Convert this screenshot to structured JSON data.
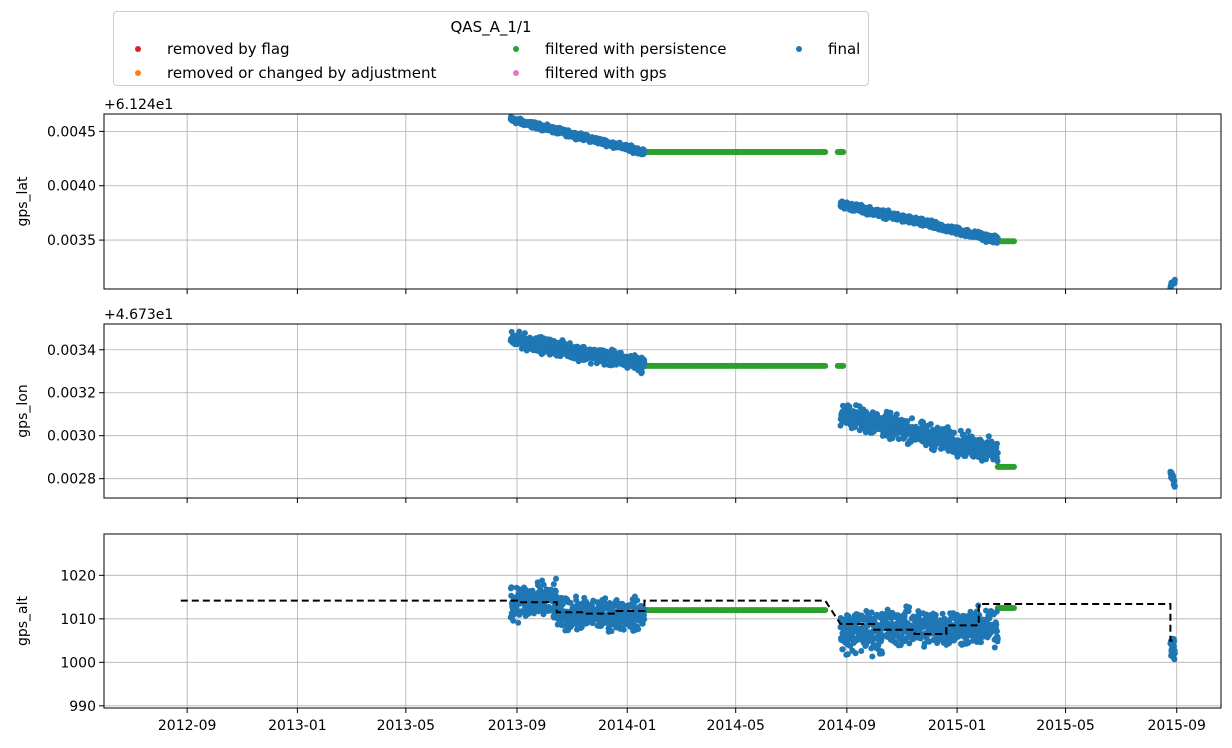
{
  "chart_data": [
    {
      "type": "scatter",
      "id": "lat",
      "ylabel": "gps_lat",
      "offset_label": "+6.124e1",
      "ylim": [
        0.00305,
        0.00466
      ],
      "yticks": [
        0.0035,
        0.004,
        0.0045
      ],
      "ytick_labels": [
        "0.0035",
        "0.0040",
        "0.0045"
      ],
      "grid": true,
      "series": [
        {
          "name": "final",
          "segments": [
            {
              "x": [
                "2013-08-25",
                "2014-01-20"
              ],
              "y": [
                0.00461,
                0.00431
              ],
              "spread": 4e-05
            },
            {
              "x": [
                "2014-08-25",
                "2015-02-15"
              ],
              "y": [
                0.00383,
                0.0035
              ],
              "spread": 5e-05
            },
            {
              "x": [
                "2015-08-25",
                "2015-08-30"
              ],
              "y": [
                0.00308,
                0.00312
              ],
              "spread": 3e-05
            }
          ]
        },
        {
          "name": "filtered with persistence",
          "segments": [
            {
              "x": [
                "2014-01-20",
                "2014-08-08"
              ],
              "y": [
                0.00431,
                0.00431
              ],
              "spread": 0
            },
            {
              "x": [
                "2014-08-22",
                "2014-08-28"
              ],
              "y": [
                0.00431,
                0.00431
              ],
              "spread": 0
            },
            {
              "x": [
                "2015-02-15",
                "2015-03-05"
              ],
              "y": [
                0.00349,
                0.00349
              ],
              "spread": 0
            }
          ]
        }
      ]
    },
    {
      "type": "scatter",
      "id": "lon",
      "ylabel": "gps_lon",
      "offset_label": "+4.673e1",
      "ylim": [
        0.00271,
        0.00352
      ],
      "yticks": [
        0.0028,
        0.003,
        0.0032,
        0.0034
      ],
      "ytick_labels": [
        "0.0028",
        "0.0030",
        "0.0032",
        "0.0034"
      ],
      "grid": true,
      "series": [
        {
          "name": "final",
          "segments": [
            {
              "x": [
                "2013-08-25",
                "2014-01-20"
              ],
              "y": [
                0.00345,
                0.00333
              ],
              "spread": 5e-05
            },
            {
              "x": [
                "2014-08-25",
                "2015-02-15"
              ],
              "y": [
                0.0031,
                0.00292
              ],
              "spread": 8e-05
            },
            {
              "x": [
                "2015-08-25",
                "2015-08-30"
              ],
              "y": [
                0.00282,
                0.00278
              ],
              "spread": 4e-05
            }
          ]
        },
        {
          "name": "filtered with persistence",
          "segments": [
            {
              "x": [
                "2014-01-20",
                "2014-08-08"
              ],
              "y": [
                0.003325,
                0.003325
              ],
              "spread": 0
            },
            {
              "x": [
                "2014-08-22",
                "2014-08-28"
              ],
              "y": [
                0.003325,
                0.003325
              ],
              "spread": 0
            },
            {
              "x": [
                "2015-02-15",
                "2015-03-05"
              ],
              "y": [
                0.002855,
                0.002855
              ],
              "spread": 0
            }
          ]
        }
      ]
    },
    {
      "type": "scatter",
      "id": "alt",
      "ylabel": "gps_alt",
      "offset_label": "",
      "ylim": [
        989.5,
        1029.5
      ],
      "yticks": [
        990,
        1000,
        1010,
        1020
      ],
      "ytick_labels": [
        "990",
        "1000",
        "1010",
        "1020"
      ],
      "grid": true,
      "series": [
        {
          "name": "final",
          "segments": [
            {
              "x": [
                "2013-08-25",
                "2013-10-15"
              ],
              "y": [
                1014,
                1014
              ],
              "spread": 6
            },
            {
              "x": [
                "2013-10-15",
                "2014-01-20"
              ],
              "y": [
                1011,
                1011
              ],
              "spread": 5
            },
            {
              "x": [
                "2014-08-25",
                "2014-10-10"
              ],
              "y": [
                1007,
                1007
              ],
              "spread": 7
            },
            {
              "x": [
                "2014-10-10",
                "2015-02-15"
              ],
              "y": [
                1008,
                1008
              ],
              "spread": 6
            },
            {
              "x": [
                "2015-08-25",
                "2015-08-30"
              ],
              "y": [
                1004,
                1004
              ],
              "spread": 5
            }
          ]
        },
        {
          "name": "filtered with persistence",
          "segments": [
            {
              "x": [
                "2014-01-20",
                "2014-08-08"
              ],
              "y": [
                1012,
                1012
              ],
              "spread": 0
            },
            {
              "x": [
                "2015-02-15",
                "2015-03-05"
              ],
              "y": [
                1012.5,
                1012.5
              ],
              "spread": 0
            }
          ]
        }
      ],
      "line": {
        "style": "dashed",
        "color": "#000000",
        "x": [
          "2012-08-25",
          "2013-09-01",
          "2013-09-01",
          "2013-10-15",
          "2013-10-15",
          "2013-11-15",
          "2013-11-15",
          "2013-12-20",
          "2013-12-20",
          "2014-01-20",
          "2014-01-20",
          "2014-08-08",
          "2014-08-25",
          "2014-08-25",
          "2014-10-01",
          "2014-10-01",
          "2014-11-15",
          "2014-11-15",
          "2014-12-20",
          "2014-12-20",
          "2015-01-25",
          "2015-01-25",
          "2015-08-25",
          "2015-08-25",
          "2015-08-30"
        ],
        "y": [
          1014.2,
          1014.2,
          1013.8,
          1013.8,
          1011.5,
          1011.5,
          1011.2,
          1011.2,
          1011.8,
          1011.8,
          1014.2,
          1014.2,
          1008.8,
          1008.8,
          1008.8,
          1007.5,
          1007.5,
          1006.5,
          1006.5,
          1008.5,
          1008.5,
          1013.4,
          1013.4,
          1005.0,
          1005.0
        ]
      }
    }
  ],
  "x_axis": {
    "range": [
      "2012-06-01",
      "2015-10-20"
    ],
    "ticks": [
      "2012-09-01",
      "2013-01-01",
      "2013-05-01",
      "2013-09-01",
      "2014-01-01",
      "2014-05-01",
      "2014-09-01",
      "2015-01-01",
      "2015-05-01",
      "2015-09-01"
    ],
    "tick_labels": [
      "2012-09",
      "2013-01",
      "2013-05",
      "2013-09",
      "2014-01",
      "2014-05",
      "2014-09",
      "2015-01",
      "2015-05",
      "2015-09"
    ]
  },
  "legend": {
    "title": "QAS_A_1/1",
    "placement": "top",
    "items": [
      {
        "label": "removed by flag",
        "color": "#d62728"
      },
      {
        "label": "removed or changed by adjustment",
        "color": "#ff7f0e"
      },
      {
        "label": "filtered with persistence",
        "color": "#2ca02c"
      },
      {
        "label": "filtered with gps",
        "color": "#e377c2"
      },
      {
        "label": "final",
        "color": "#1f77b4"
      }
    ]
  }
}
